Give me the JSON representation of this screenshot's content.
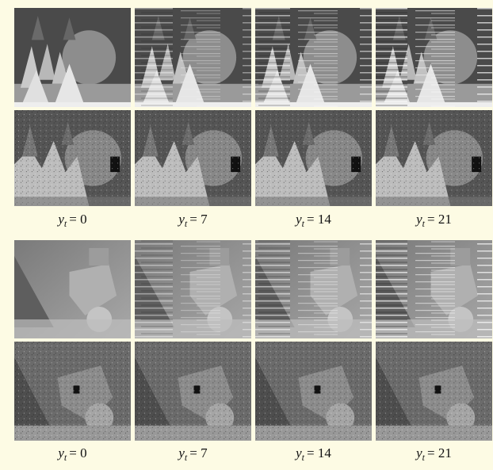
{
  "panels": [
    {
      "captions": [
        {
          "var": "y",
          "sub": "t",
          "value": "= 0"
        },
        {
          "var": "y",
          "sub": "t",
          "value": "= 7"
        },
        {
          "var": "y",
          "sub": "t",
          "value": "= 14"
        },
        {
          "var": "y",
          "sub": "t",
          "value": "= 21"
        }
      ]
    },
    {
      "captions": [
        {
          "var": "y",
          "sub": "t",
          "value": "= 0"
        },
        {
          "var": "y",
          "sub": "t",
          "value": "= 7"
        },
        {
          "var": "y",
          "sub": "t",
          "value": "= 14"
        },
        {
          "var": "y",
          "sub": "t",
          "value": "= 21"
        }
      ]
    }
  ]
}
